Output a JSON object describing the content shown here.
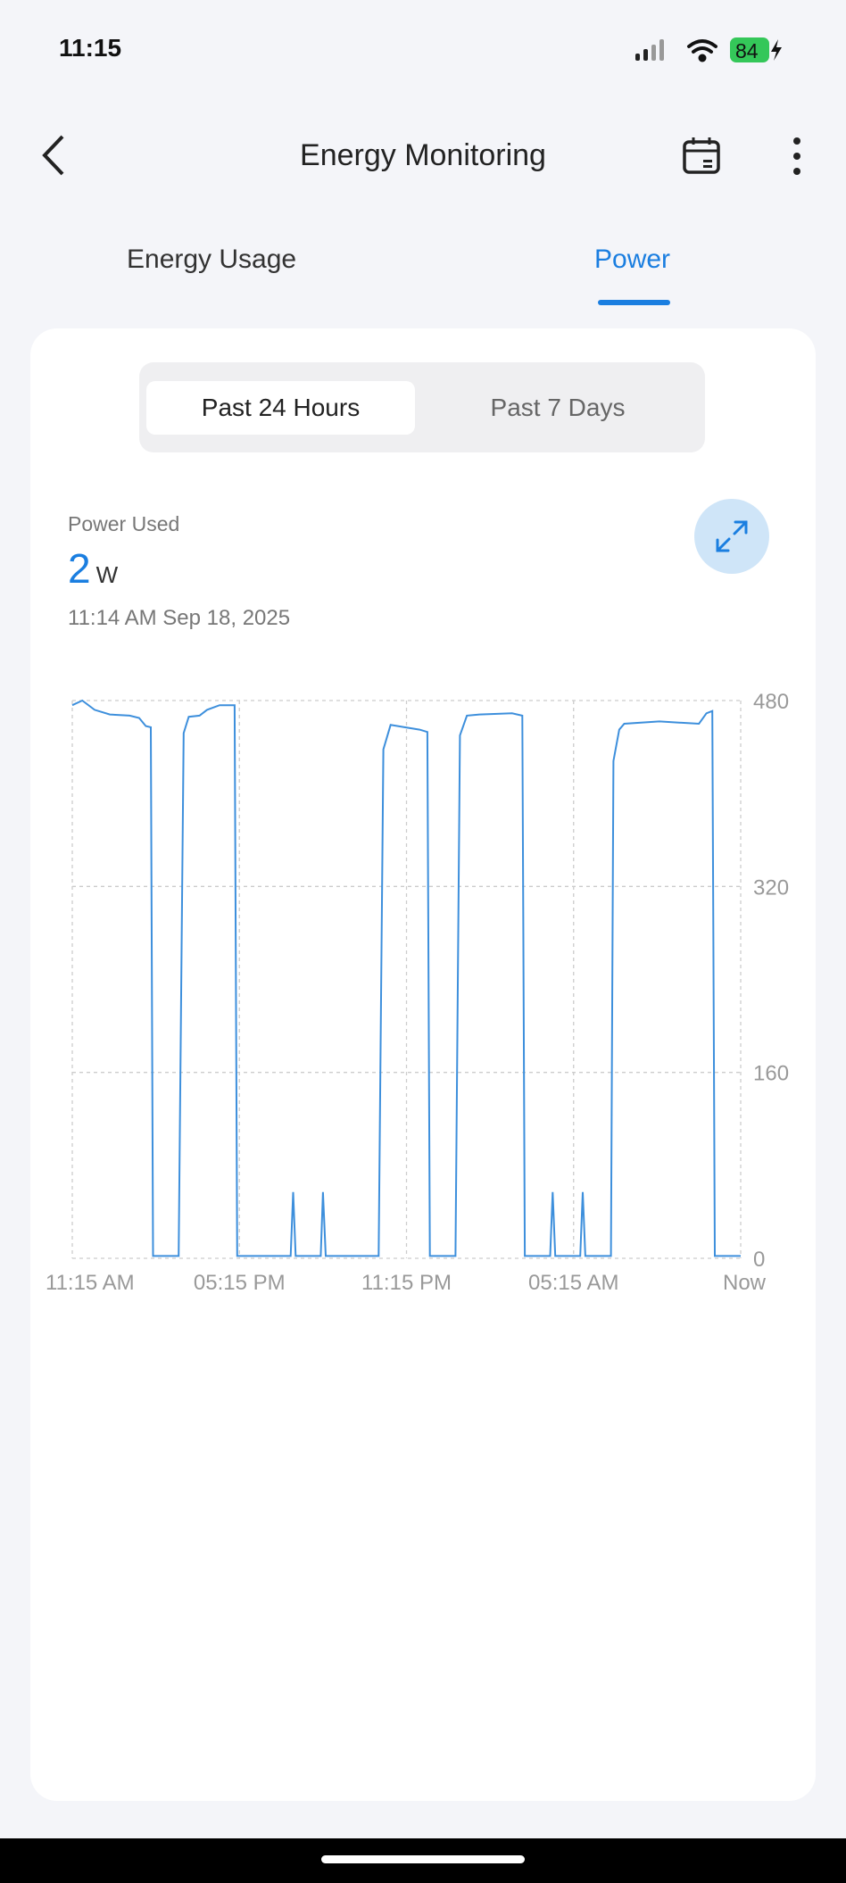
{
  "status_bar": {
    "time": "11:15",
    "battery": "84",
    "battery_color": "#34c759"
  },
  "header": {
    "title": "Energy Monitoring",
    "back_icon": "chevron-left-icon",
    "calendar_icon": "calendar-icon",
    "more_icon": "more-vertical-icon"
  },
  "tabs": [
    {
      "label": "Energy Usage",
      "active": false
    },
    {
      "label": "Power",
      "active": true
    }
  ],
  "range": {
    "options": [
      "Past 24 Hours",
      "Past 7 Days"
    ],
    "selected": "Past 24 Hours"
  },
  "summary": {
    "label": "Power Used",
    "value": "2",
    "unit": "W",
    "timestamp": "11:14 AM  Sep 18, 2025"
  },
  "accent": "#1a7ee0",
  "chart_data": {
    "type": "line",
    "xlabel": "",
    "ylabel": "",
    "x_unit": "hours since 11:15 AM",
    "x_ticks": [
      "11:15 AM",
      "05:15 PM",
      "11:15 PM",
      "05:15 AM",
      "Now"
    ],
    "y_ticks": [
      "0",
      "160",
      "320",
      "480"
    ],
    "ylim": [
      0,
      480
    ],
    "xlim": [
      0,
      24
    ],
    "grid": true,
    "series": [
      {
        "color": "#3d8fdc",
        "x": [
          0,
          0.36,
          0.8,
          1.35,
          2.06,
          2.4,
          2.64,
          2.82,
          2.9,
          3.82,
          4.0,
          4.18,
          4.57,
          4.84,
          5.29,
          5.83,
          5.92,
          7.84,
          7.93,
          8.02,
          8.92,
          9.0,
          9.1,
          11.0,
          11.17,
          11.43,
          11.93,
          12.47,
          12.75,
          12.84,
          13.76,
          13.92,
          14.17,
          14.62,
          15.79,
          16.16,
          16.25,
          17.16,
          17.25,
          17.34,
          18.24,
          18.33,
          18.42,
          19.34,
          19.43,
          19.64,
          19.82,
          21.08,
          22.5,
          22.77,
          22.98,
          23.07,
          24
        ],
        "y": [
          476,
          480,
          472,
          468,
          467,
          465,
          458,
          457,
          2,
          2,
          452,
          466,
          467,
          472,
          476,
          476,
          2,
          2,
          57,
          2,
          2,
          57,
          2,
          2,
          438,
          459,
          457,
          455,
          453,
          2,
          2,
          450,
          467,
          468,
          469,
          467,
          2,
          2,
          57,
          2,
          2,
          57,
          2,
          2,
          428,
          455,
          460,
          462,
          460,
          469,
          471,
          2,
          2
        ]
      }
    ]
  }
}
